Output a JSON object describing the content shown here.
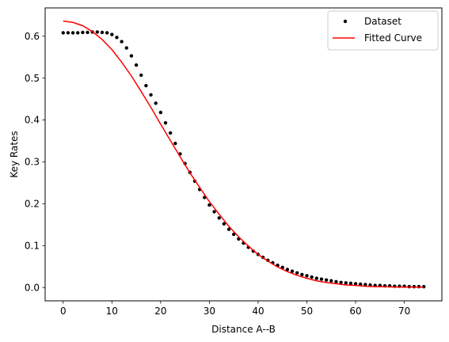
{
  "chart_data": {
    "type": "scatter",
    "xlabel": "Distance A--B",
    "ylabel": "Key Rates",
    "xlim": [
      -3.7,
      77.7
    ],
    "ylim": [
      -0.0318,
      0.6675
    ],
    "xticks": [
      0,
      10,
      20,
      30,
      40,
      50,
      60,
      70
    ],
    "yticks": [
      0.0,
      0.1,
      0.2,
      0.3,
      0.4,
      0.5,
      0.6
    ],
    "xtick_labels": [
      "0",
      "10",
      "20",
      "30",
      "40",
      "50",
      "60",
      "70"
    ],
    "ytick_labels": [
      "0.0",
      "0.1",
      "0.2",
      "0.3",
      "0.4",
      "0.5",
      "0.6"
    ],
    "grid": false,
    "legend_position": "top-right",
    "legend": [
      {
        "label": "Dataset",
        "kind": "marker",
        "color": "#000000"
      },
      {
        "label": "Fitted Curve",
        "kind": "line",
        "color": "#ff0000"
      }
    ],
    "series": [
      {
        "name": "Dataset",
        "kind": "scatter",
        "color": "#000000",
        "x": [
          0,
          1,
          2,
          3,
          4,
          5,
          6,
          7,
          8,
          9,
          10,
          11,
          12,
          13,
          14,
          15,
          16,
          17,
          18,
          19,
          20,
          21,
          22,
          23,
          24,
          25,
          26,
          27,
          28,
          29,
          30,
          31,
          32,
          33,
          34,
          35,
          36,
          37,
          38,
          39,
          40,
          41,
          42,
          43,
          44,
          45,
          46,
          47,
          48,
          49,
          50,
          51,
          52,
          53,
          54,
          55,
          56,
          57,
          58,
          59,
          60,
          61,
          62,
          63,
          64,
          65,
          66,
          67,
          68,
          69,
          70,
          71,
          72,
          73,
          74
        ],
        "y": [
          0.608,
          0.608,
          0.608,
          0.608,
          0.609,
          0.609,
          0.61,
          0.61,
          0.609,
          0.608,
          0.604,
          0.597,
          0.587,
          0.572,
          0.553,
          0.531,
          0.507,
          0.482,
          0.46,
          0.44,
          0.418,
          0.393,
          0.369,
          0.344,
          0.319,
          0.296,
          0.275,
          0.254,
          0.234,
          0.215,
          0.197,
          0.181,
          0.166,
          0.152,
          0.139,
          0.127,
          0.116,
          0.106,
          0.096,
          0.087,
          0.079,
          0.072,
          0.065,
          0.059,
          0.053,
          0.048,
          0.043,
          0.039,
          0.035,
          0.031,
          0.028,
          0.025,
          0.022,
          0.02,
          0.018,
          0.016,
          0.014,
          0.012,
          0.011,
          0.01,
          0.009,
          0.008,
          0.007,
          0.006,
          0.005,
          0.005,
          0.004,
          0.004,
          0.003,
          0.003,
          0.003,
          0.002,
          0.002,
          0.002,
          0.002
        ]
      },
      {
        "name": "Fitted Curve",
        "kind": "line",
        "color": "#ff0000",
        "x": [
          0,
          2,
          4,
          6,
          8,
          10,
          12,
          14,
          16,
          18,
          20,
          22,
          24,
          26,
          28,
          30,
          32,
          34,
          36,
          38,
          40,
          42,
          44,
          46,
          48,
          50,
          52,
          54,
          56,
          58,
          60,
          62,
          64,
          66,
          68,
          70,
          72,
          74
        ],
        "y": [
          0.636,
          0.633,
          0.625,
          0.611,
          0.592,
          0.568,
          0.538,
          0.505,
          0.468,
          0.43,
          0.39,
          0.351,
          0.312,
          0.274,
          0.239,
          0.205,
          0.175,
          0.146,
          0.121,
          0.099,
          0.079,
          0.063,
          0.049,
          0.038,
          0.029,
          0.022,
          0.016,
          0.012,
          0.009,
          0.006,
          0.005,
          0.003,
          0.002,
          0.002,
          0.001,
          0.001,
          0.001,
          0.0005
        ]
      }
    ]
  }
}
